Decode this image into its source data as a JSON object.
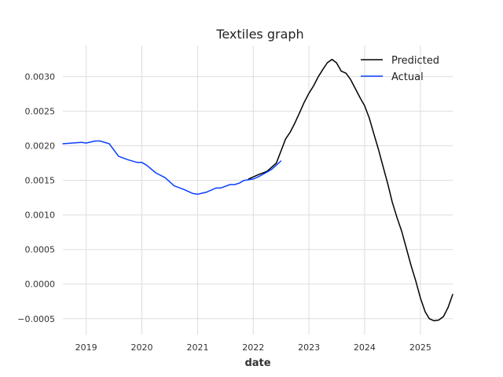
{
  "chart_data": {
    "type": "line",
    "title": "Textiles graph",
    "xlabel": "date",
    "ylabel": "",
    "x_axis_type": "date",
    "xlim": [
      "2018-08-01",
      "2025-08-01"
    ],
    "ylim": [
      -0.00073,
      0.00345
    ],
    "x_ticks": [
      {
        "date": "2019-01-01",
        "label": "2019"
      },
      {
        "date": "2020-01-01",
        "label": "2020"
      },
      {
        "date": "2021-01-01",
        "label": "2021"
      },
      {
        "date": "2022-01-01",
        "label": "2022"
      },
      {
        "date": "2023-01-01",
        "label": "2023"
      },
      {
        "date": "2024-01-01",
        "label": "2024"
      },
      {
        "date": "2025-01-01",
        "label": "2025"
      }
    ],
    "y_ticks": [
      {
        "value": -0.0005,
        "label": "−0.0005"
      },
      {
        "value": 0.0,
        "label": "0.0000"
      },
      {
        "value": 0.0005,
        "label": "0.0005"
      },
      {
        "value": 0.001,
        "label": "0.0010"
      },
      {
        "value": 0.0015,
        "label": "0.0015"
      },
      {
        "value": 0.002,
        "label": "0.0020"
      },
      {
        "value": 0.0025,
        "label": "0.0025"
      },
      {
        "value": 0.003,
        "label": "0.0030"
      }
    ],
    "grid": true,
    "legend_position": "top-right",
    "series": [
      {
        "name": "Predicted",
        "color": "#000000",
        "points": [
          [
            "2021-12-01",
            0.00152
          ],
          [
            "2022-02-01",
            0.00158
          ],
          [
            "2022-04-01",
            0.00163
          ],
          [
            "2022-06-01",
            0.00175
          ],
          [
            "2022-08-01",
            0.0021
          ],
          [
            "2022-09-01",
            0.0022
          ],
          [
            "2022-10-01",
            0.00233
          ],
          [
            "2022-11-01",
            0.00248
          ],
          [
            "2022-12-01",
            0.00263
          ],
          [
            "2023-01-01",
            0.00276
          ],
          [
            "2023-02-01",
            0.00287
          ],
          [
            "2023-03-01",
            0.00299
          ],
          [
            "2023-04-01",
            0.0031
          ],
          [
            "2023-05-01",
            0.0032
          ],
          [
            "2023-06-01",
            0.00325
          ],
          [
            "2023-07-01",
            0.0032
          ],
          [
            "2023-08-01",
            0.00308
          ],
          [
            "2023-09-01",
            0.00305
          ],
          [
            "2023-10-01",
            0.00296
          ],
          [
            "2023-11-01",
            0.00283
          ],
          [
            "2023-12-01",
            0.0027
          ],
          [
            "2024-01-01",
            0.00258
          ],
          [
            "2024-02-01",
            0.0024
          ],
          [
            "2024-03-01",
            0.00218
          ],
          [
            "2024-04-01",
            0.00195
          ],
          [
            "2024-05-01",
            0.0017
          ],
          [
            "2024-06-01",
            0.00145
          ],
          [
            "2024-07-01",
            0.00118
          ],
          [
            "2024-08-01",
            0.00096
          ],
          [
            "2024-09-01",
            0.00076
          ],
          [
            "2024-10-01",
            0.00052
          ],
          [
            "2024-11-01",
            0.00027
          ],
          [
            "2024-12-01",
            5e-05
          ],
          [
            "2025-01-01",
            -0.0002
          ],
          [
            "2025-02-01",
            -0.0004
          ],
          [
            "2025-03-01",
            -0.0005
          ],
          [
            "2025-04-01",
            -0.00053
          ],
          [
            "2025-05-01",
            -0.00052
          ],
          [
            "2025-06-01",
            -0.00047
          ],
          [
            "2025-07-01",
            -0.00034
          ],
          [
            "2025-08-01",
            -0.00015
          ]
        ]
      },
      {
        "name": "Actual",
        "color": "#0a3fff",
        "points": [
          [
            "2018-08-01",
            0.00203
          ],
          [
            "2018-10-01",
            0.00204
          ],
          [
            "2018-12-01",
            0.00205
          ],
          [
            "2019-01-01",
            0.00204
          ],
          [
            "2019-03-01",
            0.00207
          ],
          [
            "2019-04-01",
            0.00207
          ],
          [
            "2019-06-01",
            0.00203
          ],
          [
            "2019-08-01",
            0.00185
          ],
          [
            "2019-10-01",
            0.0018
          ],
          [
            "2019-12-01",
            0.00176
          ],
          [
            "2020-01-01",
            0.00176
          ],
          [
            "2020-02-01",
            0.00172
          ],
          [
            "2020-04-01",
            0.00161
          ],
          [
            "2020-06-01",
            0.00154
          ],
          [
            "2020-08-01",
            0.00142
          ],
          [
            "2020-10-01",
            0.00137
          ],
          [
            "2020-12-01",
            0.00131
          ],
          [
            "2021-01-01",
            0.0013
          ],
          [
            "2021-03-01",
            0.00133
          ],
          [
            "2021-05-01",
            0.00139
          ],
          [
            "2021-06-01",
            0.00139
          ],
          [
            "2021-08-01",
            0.00144
          ],
          [
            "2021-09-01",
            0.00144
          ],
          [
            "2021-10-01",
            0.00146
          ],
          [
            "2021-11-01",
            0.0015
          ],
          [
            "2022-01-01",
            0.00152
          ],
          [
            "2022-02-01",
            0.00155
          ],
          [
            "2022-04-01",
            0.00162
          ],
          [
            "2022-05-01",
            0.00166
          ],
          [
            "2022-06-01",
            0.00172
          ],
          [
            "2022-07-01",
            0.00178
          ]
        ]
      }
    ]
  }
}
